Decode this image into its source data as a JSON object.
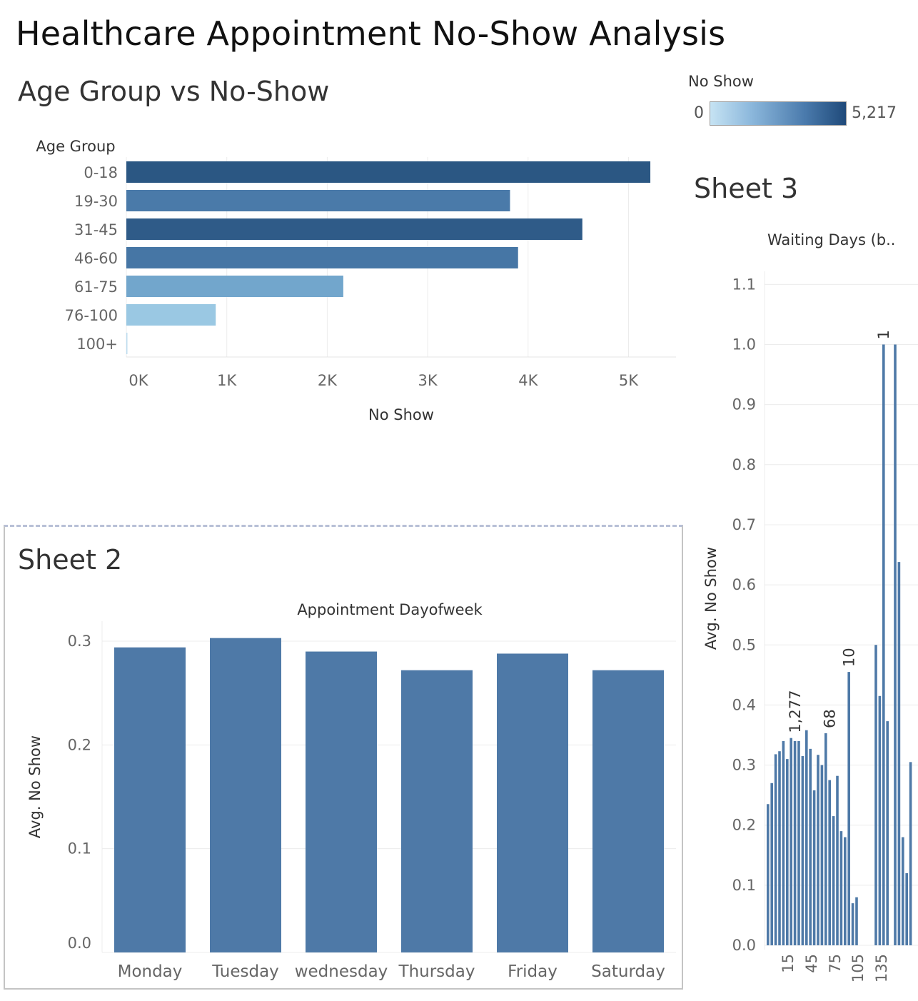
{
  "page": {
    "title": "Healthcare Appointment No-Show Analysis"
  },
  "legend": {
    "title": "No Show",
    "min_label": "0",
    "max_label": "5,217",
    "color_low": "#c6e3f3",
    "color_high": "#1f4a7a"
  },
  "chart_data": [
    {
      "type": "bar",
      "orientation": "horizontal",
      "title": "Age Group vs No-Show",
      "ylabel": "Age Group",
      "xlabel": "No Show",
      "categories": [
        "0-18",
        "19-30",
        "31-45",
        "46-60",
        "61-75",
        "76-100",
        "100+"
      ],
      "values": [
        5217,
        3820,
        4540,
        3900,
        2160,
        890,
        8
      ],
      "xticks": [
        "0K",
        "1K",
        "2K",
        "3K",
        "4K",
        "5K"
      ],
      "xlim": [
        0,
        5500
      ],
      "colors": [
        "#2b5783",
        "#4a7aa9",
        "#2f5b88",
        "#4676a5",
        "#72a6cc",
        "#9ac8e3",
        "#bcdcef"
      ],
      "grid": "vertical"
    },
    {
      "type": "bar",
      "title": "Sheet 2",
      "xlabel": "Appointment Dayofweek",
      "ylabel": "Avg. No Show",
      "categories": [
        "Monday",
        "Tuesday",
        "wednesday",
        "Thursday",
        "Friday",
        "Saturday"
      ],
      "values": [
        0.294,
        0.303,
        0.29,
        0.272,
        0.288,
        0.272
      ],
      "yticks": [
        "0.0",
        "0.1",
        "0.2",
        "0.3"
      ],
      "ylim": [
        0,
        0.32
      ],
      "color": "#4e79a7",
      "grid": "horizontal"
    },
    {
      "type": "bar",
      "title": "Sheet 3",
      "xlabel": "Waiting Days (b..",
      "ylabel": "Avg. No Show",
      "x": [
        1,
        2,
        3,
        4,
        5,
        6,
        7,
        8,
        9,
        10,
        11,
        12,
        13,
        14,
        15,
        16,
        17,
        18,
        19,
        20,
        21,
        22,
        23,
        24,
        25,
        26,
        27,
        28,
        29,
        30,
        31,
        32,
        34,
        35,
        36,
        37,
        38,
        39,
        40,
        41,
        42,
        43,
        44,
        45,
        46,
        47,
        48,
        49,
        50
      ],
      "values": [
        0.235,
        0.27,
        0.318,
        0.323,
        0.34,
        0.31,
        0.345,
        0.34,
        0.34,
        0.315,
        0.358,
        0.327,
        0.258,
        0.317,
        0.3,
        0.353,
        0.275,
        0.215,
        0.282,
        0.19,
        0.18,
        0.455,
        0.07,
        0.08,
        null,
        null,
        null,
        null,
        0.5,
        0.415,
        1.0,
        0.373,
        1.0,
        0.638,
        0.18,
        0.12,
        0.305,
        null,
        null,
        null,
        null,
        null,
        null,
        null,
        null,
        null,
        null,
        null,
        null
      ],
      "xticks": [
        "15",
        "45",
        "75",
        "105",
        "135"
      ],
      "yticks": [
        "0.0",
        "0.1",
        "0.2",
        "0.3",
        "0.4",
        "0.5",
        "0.6",
        "0.7",
        "0.8",
        "0.9",
        "1.0",
        "1.1"
      ],
      "ylim": [
        0,
        1.15
      ],
      "annotations": [
        "1,277",
        "68",
        "10",
        "1"
      ],
      "color": "#4e79a7",
      "grid": "horizontal"
    }
  ]
}
